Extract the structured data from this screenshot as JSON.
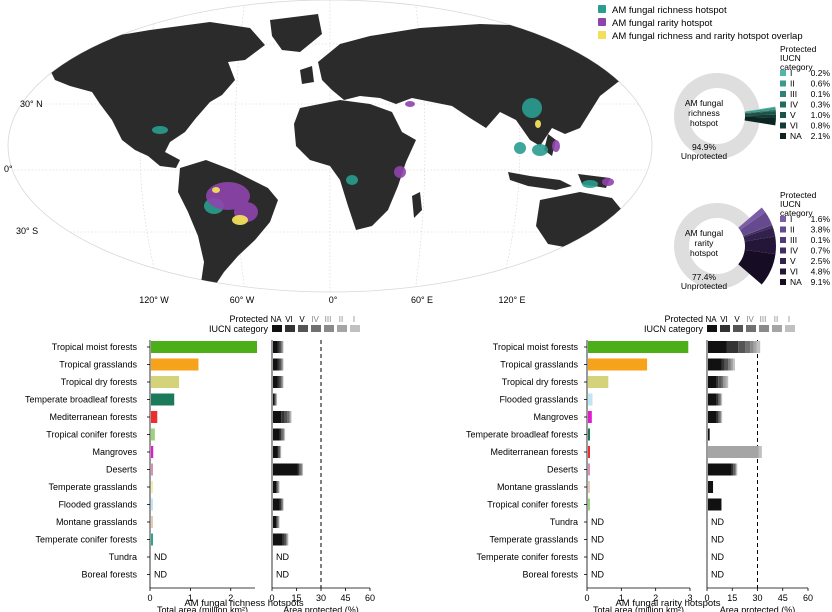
{
  "map": {
    "legend": [
      {
        "label": "AM fungal richness hotspot",
        "color": "#2a9d8f"
      },
      {
        "label": "AM fungal rarity hotspot",
        "color": "#8e44ad"
      },
      {
        "label": "AM fungal richness and rarity hotspot overlap",
        "color": "#f1e05a"
      }
    ],
    "lat_labels": [
      "30° N",
      "0°",
      "30° S"
    ],
    "lon_labels": [
      "120° W",
      "60° W",
      "0°",
      "60° E",
      "120° E"
    ],
    "land_color": "#2b2b2b",
    "grid_color": "#cfcfcf"
  },
  "donuts": [
    {
      "center_label": [
        "AM fungal",
        "richness",
        "hotspot"
      ],
      "unprotected_pct": "94.9%",
      "unprotected_label": "Unprotected",
      "legend_title": [
        "Protected",
        "IUCN",
        "category"
      ],
      "categories": [
        {
          "cat": "I",
          "pct": "0.2%",
          "value": 0.2,
          "color": "#4fb7a8"
        },
        {
          "cat": "II",
          "pct": "0.6%",
          "value": 0.6,
          "color": "#3a9a8b"
        },
        {
          "cat": "III",
          "pct": "0.1%",
          "value": 0.1,
          "color": "#2f8275"
        },
        {
          "cat": "IV",
          "pct": "0.3%",
          "value": 0.3,
          "color": "#256a5f"
        },
        {
          "cat": "V",
          "pct": "1.0%",
          "value": 1.0,
          "color": "#1c5249"
        },
        {
          "cat": "VI",
          "pct": "0.8%",
          "value": 0.8,
          "color": "#133b35"
        },
        {
          "cat": "NA",
          "pct": "2.1%",
          "value": 2.1,
          "color": "#0b2622"
        }
      ]
    },
    {
      "center_label": [
        "AM fungal",
        "rarity",
        "hotspot"
      ],
      "unprotected_pct": "77.4%",
      "unprotected_label": "Unprotected",
      "legend_title": [
        "Protected",
        "IUCN",
        "category"
      ],
      "categories": [
        {
          "cat": "I",
          "pct": "1.6%",
          "value": 1.6,
          "color": "#7b5ea7"
        },
        {
          "cat": "II",
          "pct": "3.8%",
          "value": 3.8,
          "color": "#654a8f"
        },
        {
          "cat": "III",
          "pct": "0.1%",
          "value": 0.1,
          "color": "#523a78"
        },
        {
          "cat": "IV",
          "pct": "0.7%",
          "value": 0.7,
          "color": "#412d62"
        },
        {
          "cat": "V",
          "pct": "2.5%",
          "value": 2.5,
          "color": "#32214d"
        },
        {
          "cat": "VI",
          "pct": "4.8%",
          "value": 4.8,
          "color": "#241638"
        },
        {
          "cat": "NA",
          "pct": "9.1%",
          "value": 9.1,
          "color": "#160c24"
        }
      ]
    }
  ],
  "chart_data": [
    {
      "type": "bar",
      "title": "AM fungal richness hotspots",
      "xlabel": "Total area (million km²)",
      "xlim": [
        0,
        2.6
      ],
      "xticks": [
        "0",
        "1",
        "2"
      ],
      "categories": [
        "Tropical moist forests",
        "Tropical grasslands",
        "Tropical dry forests",
        "Temperate broadleaf forests",
        "Mediterranean forests",
        "Tropical conifer forests",
        "Mangroves",
        "Deserts",
        "Temperate grasslands",
        "Flooded grasslands",
        "Montane grasslands",
        "Temperate conifer forests",
        "Tundra",
        "Boreal forests"
      ],
      "values": [
        2.65,
        1.2,
        0.72,
        0.6,
        0.18,
        0.12,
        0.08,
        0.06,
        0.06,
        0.04,
        0.04,
        0.06,
        null,
        null
      ],
      "colors": [
        "#4caf1a",
        "#f7a21b",
        "#d4d37a",
        "#1b7a5a",
        "#ef2d2d",
        "#9ad27a",
        "#e11ad0",
        "#d88fb8",
        "#f3eeaa",
        "#bfe6f2",
        "#e8c8b8",
        "#2aa68a",
        "#000000",
        "#000000"
      ],
      "na_label": "ND"
    },
    {
      "type": "bar",
      "title": "AM fungal richness hotspots",
      "xlabel": "Area protected (%)",
      "xlim": [
        0,
        60
      ],
      "xticks": [
        "0",
        "15",
        "30",
        "45",
        "60"
      ],
      "reference_line": 30,
      "legend_title": [
        "Protected",
        "IUCN category"
      ],
      "legend": [
        {
          "name": "NA",
          "color": "#111111"
        },
        {
          "name": "VI",
          "color": "#333333"
        },
        {
          "name": "V",
          "color": "#555555"
        },
        {
          "name": "IV",
          "color": "#707070"
        },
        {
          "name": "III",
          "color": "#8a8a8a"
        },
        {
          "name": "II",
          "color": "#a5a5a5"
        },
        {
          "name": "I",
          "color": "#c0c0c0"
        }
      ],
      "categories": [
        "Tropical moist forests",
        "Tropical grasslands",
        "Tropical dry forests",
        "Temperate broadleaf forests",
        "Mediterranean forests",
        "Tropical conifer forests",
        "Mangroves",
        "Deserts",
        "Temperate grasslands",
        "Flooded grasslands",
        "Montane grasslands",
        "Temperate conifer forests",
        "Tundra",
        "Boreal forests"
      ],
      "series": [
        {
          "name": "NA",
          "values": [
            3,
            3,
            3,
            1,
            5,
            4,
            3,
            15,
            2,
            4,
            2,
            6,
            null,
            null
          ]
        },
        {
          "name": "VI",
          "values": [
            1,
            1,
            1,
            0,
            2,
            1,
            0.5,
            1,
            0.5,
            1,
            0.5,
            1,
            null,
            null
          ]
        },
        {
          "name": "V",
          "values": [
            1,
            1,
            1,
            0.5,
            2,
            1,
            0.5,
            1,
            0.5,
            0.5,
            0.5,
            1,
            null,
            null
          ]
        },
        {
          "name": "IV",
          "values": [
            0.5,
            0.5,
            0.5,
            0.3,
            1,
            0.5,
            0.3,
            0.5,
            0.3,
            0.3,
            0.3,
            0.5,
            null,
            null
          ]
        },
        {
          "name": "III",
          "values": [
            0.3,
            0.3,
            0.3,
            0.2,
            0.5,
            0.3,
            0.2,
            0.3,
            0.2,
            0.2,
            0.2,
            0.3,
            null,
            null
          ]
        },
        {
          "name": "II",
          "values": [
            0.3,
            0.3,
            0.3,
            0.2,
            0.5,
            0.3,
            0.2,
            0.3,
            0.2,
            0.2,
            0.2,
            0.3,
            null,
            null
          ]
        },
        {
          "name": "I",
          "values": [
            0.3,
            0.2,
            0.2,
            0.1,
            0.3,
            0.2,
            0.1,
            0.2,
            0.1,
            0.1,
            0.1,
            0.2,
            null,
            null
          ]
        }
      ],
      "na_label": "ND"
    },
    {
      "type": "bar",
      "title": "AM fungal rarity hotspots",
      "xlabel": "Total area (million km²)",
      "xlim": [
        0,
        3
      ],
      "xticks": [
        "0",
        "1",
        "2",
        "3"
      ],
      "categories": [
        "Tropical moist forests",
        "Tropical grasslands",
        "Tropical dry forests",
        "Flooded grasslands",
        "Mangroves",
        "Temperate broadleaf forests",
        "Mediterranean forests",
        "Deserts",
        "Montane grasslands",
        "Tropical conifer forests",
        "Tundra",
        "Temperate grasslands",
        "Temperate conifer forests",
        "Boreal forests"
      ],
      "values": [
        2.95,
        1.75,
        0.62,
        0.16,
        0.14,
        0.04,
        0.04,
        0.04,
        0.03,
        0.02,
        null,
        null,
        null,
        null
      ],
      "colors": [
        "#4caf1a",
        "#f7a21b",
        "#d4d37a",
        "#bfe6f2",
        "#e11ad0",
        "#1b7a5a",
        "#ef2d2d",
        "#d88fb8",
        "#e8c8b8",
        "#9ad27a",
        "#000000",
        "#000000",
        "#000000",
        "#000000"
      ],
      "na_label": "ND"
    },
    {
      "type": "bar",
      "title": "AM fungal rarity hotspots",
      "xlabel": "Area protected (%)",
      "xlim": [
        0,
        60
      ],
      "xticks": [
        "0",
        "15",
        "30",
        "45",
        "60"
      ],
      "reference_line": 30,
      "legend_title": [
        "Protected",
        "IUCN category"
      ],
      "legend": [
        {
          "name": "NA",
          "color": "#111111"
        },
        {
          "name": "VI",
          "color": "#333333"
        },
        {
          "name": "V",
          "color": "#555555"
        },
        {
          "name": "IV",
          "color": "#707070"
        },
        {
          "name": "III",
          "color": "#8a8a8a"
        },
        {
          "name": "II",
          "color": "#a5a5a5"
        },
        {
          "name": "I",
          "color": "#c0c0c0"
        }
      ],
      "categories": [
        "Tropical moist forests",
        "Tropical grasslands",
        "Tropical dry forests",
        "Flooded grasslands",
        "Mangroves",
        "Temperate broadleaf forests",
        "Mediterranean forests",
        "Deserts",
        "Montane grasslands",
        "Tropical conifer forests",
        "Tundra",
        "Temperate grasslands",
        "Temperate conifer forests",
        "Boreal forests"
      ],
      "series": [
        {
          "name": "NA",
          "values": [
            11,
            8,
            5,
            5,
            5,
            1,
            0,
            14,
            3,
            8,
            null,
            null,
            null,
            null
          ]
        },
        {
          "name": "VI",
          "values": [
            7,
            2,
            1,
            1,
            1,
            0,
            0,
            1,
            0,
            0,
            null,
            null,
            null,
            null
          ]
        },
        {
          "name": "V",
          "values": [
            4,
            2,
            2,
            1,
            1,
            0,
            0,
            1,
            0,
            0,
            null,
            null,
            null,
            null
          ]
        },
        {
          "name": "IV",
          "values": [
            3,
            1,
            1,
            0.5,
            0.5,
            0,
            0,
            0.5,
            0,
            0,
            null,
            null,
            null,
            null
          ]
        },
        {
          "name": "III",
          "values": [
            2,
            1,
            1,
            0.3,
            0.3,
            0,
            0,
            0.3,
            0,
            0,
            null,
            null,
            null,
            null
          ]
        },
        {
          "name": "II",
          "values": [
            2,
            1,
            1,
            0.3,
            0.3,
            0,
            30,
            0.3,
            0,
            0,
            null,
            null,
            null,
            null
          ]
        },
        {
          "name": "I",
          "values": [
            2,
            1,
            1,
            0.2,
            0.2,
            0,
            2,
            0.2,
            0,
            0,
            null,
            null,
            null,
            null
          ]
        }
      ],
      "na_label": "ND"
    }
  ]
}
